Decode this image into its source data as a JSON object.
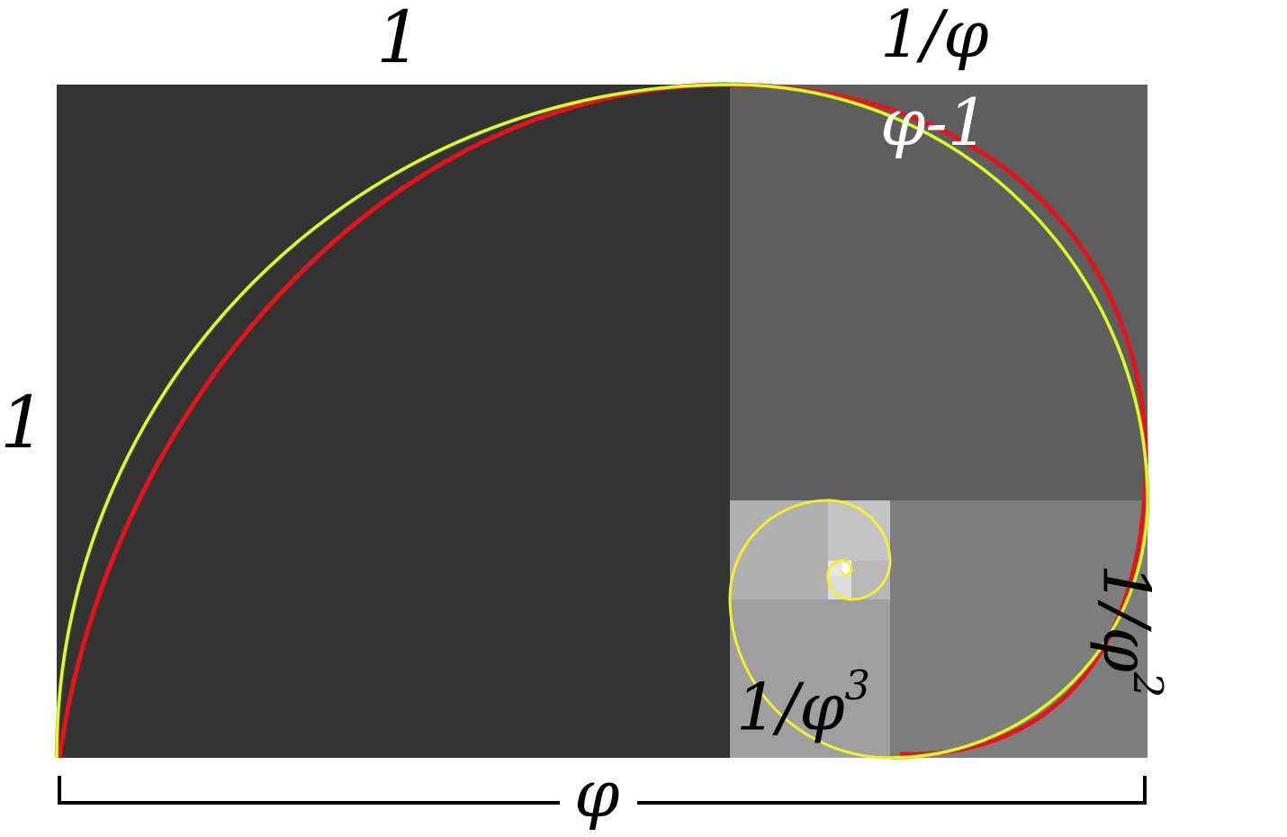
{
  "labels": {
    "top_left": "1",
    "top_right": "1/φ",
    "inner_top_right": "φ-1",
    "left_side": "1",
    "right_side_base": "1/φ",
    "right_side_exp": "2",
    "inner_bottom_base": "1/φ",
    "inner_bottom_exp": "3",
    "bottom_width": "φ"
  },
  "colors": {
    "square_1": "#333333",
    "square_2": "#5e5e5e",
    "square_3": "#7d7d7d",
    "square_4": "#9f9f9f",
    "square_5": "#b0b0b0",
    "square_6": "#c4c4c4",
    "square_7": "#dcdcdc",
    "spiral_red": "#e8121a",
    "spiral_green": "#52e61c",
    "spiral_yellow": "#f7ef2c",
    "bracket": "#000000"
  }
}
